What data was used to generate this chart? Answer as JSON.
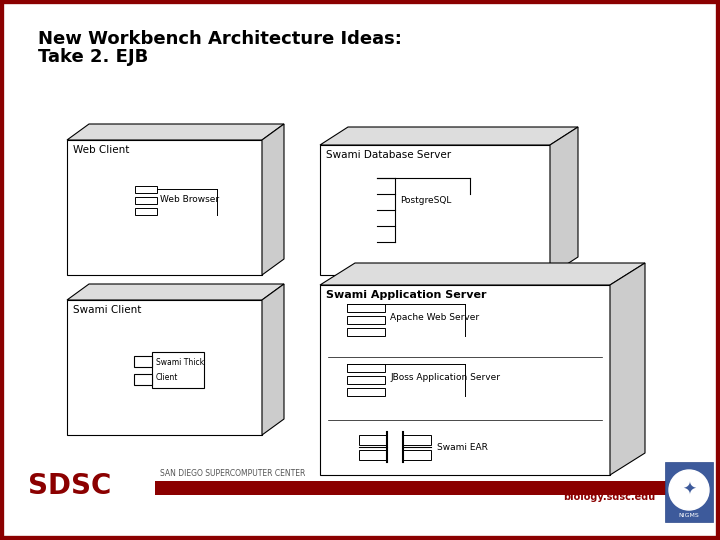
{
  "title_line1": "New Workbench Architecture Ideas:",
  "title_line2": "Take 2. EJB",
  "bg_color": "#ffffff",
  "border_color": "#8B0000",
  "title_color": "#000000",
  "sdsc_color": "#8B0000",
  "footer_label": "SAN DIEGO SUPERCOMPUTER CENTER",
  "footer_url": "biology.sdsc.edu",
  "box_edge": "#000000",
  "box_face": "#ffffff",
  "box_top": "#dddddd",
  "box_right": "#cccccc"
}
